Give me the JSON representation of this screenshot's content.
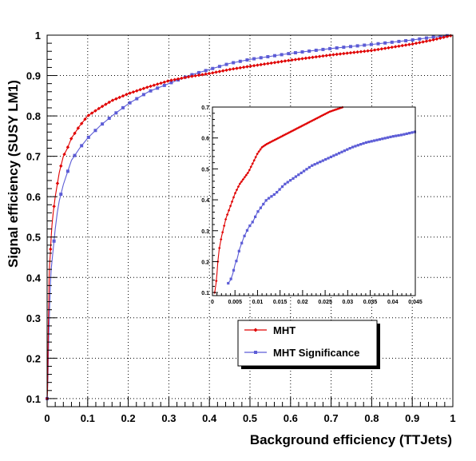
{
  "chart_data": {
    "type": "line",
    "xlabel": "Background efficiency (TTJets)",
    "ylabel": "Signal efficiency (SUSY LM1)",
    "xlim": [
      0,
      1
    ],
    "ylim": [
      0.08,
      1.0
    ],
    "x_ticks": [
      "0",
      "0.1",
      "0.2",
      "0.3",
      "0.4",
      "0.5",
      "0.6",
      "0.7",
      "0.8",
      "0.9",
      "1"
    ],
    "y_ticks": [
      "0.1",
      "0.2",
      "0.3",
      "0.4",
      "0.5",
      "0.6",
      "0.7",
      "0.8",
      "0.9",
      "1"
    ],
    "grid": true,
    "legend_position": "bottom-right",
    "series": [
      {
        "name": "MHT",
        "color": "#e00000",
        "marker": "diamond",
        "points": [
          [
            0.0,
            0.1
          ],
          [
            0.001,
            0.12
          ],
          [
            0.002,
            0.2
          ],
          [
            0.003,
            0.28
          ],
          [
            0.004,
            0.33
          ],
          [
            0.005,
            0.4
          ],
          [
            0.006,
            0.43
          ],
          [
            0.008,
            0.46
          ],
          [
            0.01,
            0.5
          ],
          [
            0.012,
            0.53
          ],
          [
            0.015,
            0.56
          ],
          [
            0.02,
            0.6
          ],
          [
            0.025,
            0.63
          ],
          [
            0.03,
            0.66
          ],
          [
            0.04,
            0.7
          ],
          [
            0.05,
            0.72
          ],
          [
            0.06,
            0.745
          ],
          [
            0.08,
            0.775
          ],
          [
            0.1,
            0.8
          ],
          [
            0.13,
            0.82
          ],
          [
            0.16,
            0.838
          ],
          [
            0.2,
            0.855
          ],
          [
            0.25,
            0.872
          ],
          [
            0.3,
            0.887
          ],
          [
            0.35,
            0.897
          ],
          [
            0.4,
            0.905
          ],
          [
            0.45,
            0.915
          ],
          [
            0.5,
            0.923
          ],
          [
            0.6,
            0.938
          ],
          [
            0.7,
            0.951
          ],
          [
            0.8,
            0.962
          ],
          [
            0.9,
            0.978
          ],
          [
            0.95,
            0.988
          ],
          [
            1.0,
            1.0
          ]
        ]
      },
      {
        "name": "MHT Significance",
        "color": "#5c5cd6",
        "marker": "square",
        "points": [
          [
            0.0,
            0.1
          ],
          [
            0.002,
            0.15
          ],
          [
            0.004,
            0.25
          ],
          [
            0.006,
            0.32
          ],
          [
            0.008,
            0.38
          ],
          [
            0.01,
            0.42
          ],
          [
            0.015,
            0.47
          ],
          [
            0.02,
            0.52
          ],
          [
            0.025,
            0.56
          ],
          [
            0.03,
            0.59
          ],
          [
            0.04,
            0.63
          ],
          [
            0.05,
            0.66
          ],
          [
            0.06,
            0.69
          ],
          [
            0.08,
            0.72
          ],
          [
            0.1,
            0.745
          ],
          [
            0.13,
            0.775
          ],
          [
            0.16,
            0.8
          ],
          [
            0.2,
            0.83
          ],
          [
            0.25,
            0.86
          ],
          [
            0.3,
            0.88
          ],
          [
            0.35,
            0.9
          ],
          [
            0.4,
            0.915
          ],
          [
            0.45,
            0.93
          ],
          [
            0.5,
            0.94
          ],
          [
            0.6,
            0.955
          ],
          [
            0.7,
            0.967
          ],
          [
            0.8,
            0.977
          ],
          [
            0.9,
            0.988
          ],
          [
            0.95,
            0.995
          ],
          [
            1.0,
            1.0
          ]
        ]
      }
    ],
    "inset": {
      "xlim": [
        0,
        0.045
      ],
      "ylim": [
        0.09,
        0.7
      ],
      "x_ticks": [
        "0",
        "0.005",
        "0.01",
        "0.015",
        "0.02",
        "0.025",
        "0.03",
        "0.035",
        "0.04",
        "0.045"
      ],
      "y_ticks": [
        "0.1",
        "0.2",
        "0.3",
        "0.4",
        "0.5",
        "0.6",
        "0.7"
      ],
      "series": [
        {
          "name": "MHT",
          "points": [
            [
              0.0005,
              0.1
            ],
            [
              0.0008,
              0.13
            ],
            [
              0.001,
              0.16
            ],
            [
              0.0012,
              0.2
            ],
            [
              0.0015,
              0.24
            ],
            [
              0.002,
              0.28
            ],
            [
              0.0025,
              0.31
            ],
            [
              0.003,
              0.34
            ],
            [
              0.004,
              0.38
            ],
            [
              0.005,
              0.42
            ],
            [
              0.006,
              0.45
            ],
            [
              0.007,
              0.47
            ],
            [
              0.008,
              0.49
            ],
            [
              0.009,
              0.52
            ],
            [
              0.01,
              0.55
            ],
            [
              0.011,
              0.57
            ],
            [
              0.012,
              0.58
            ],
            [
              0.014,
              0.595
            ],
            [
              0.016,
              0.61
            ],
            [
              0.018,
              0.625
            ],
            [
              0.02,
              0.64
            ],
            [
              0.022,
              0.655
            ],
            [
              0.024,
              0.67
            ],
            [
              0.026,
              0.685
            ],
            [
              0.028,
              0.695
            ],
            [
              0.029,
              0.7
            ]
          ]
        },
        {
          "name": "MHT Significance",
          "points": [
            [
              0.0035,
              0.13
            ],
            [
              0.004,
              0.14
            ],
            [
              0.0045,
              0.16
            ],
            [
              0.005,
              0.19
            ],
            [
              0.0055,
              0.21
            ],
            [
              0.006,
              0.24
            ],
            [
              0.007,
              0.28
            ],
            [
              0.008,
              0.31
            ],
            [
              0.009,
              0.33
            ],
            [
              0.01,
              0.36
            ],
            [
              0.011,
              0.38
            ],
            [
              0.012,
              0.4
            ],
            [
              0.014,
              0.42
            ],
            [
              0.016,
              0.45
            ],
            [
              0.018,
              0.47
            ],
            [
              0.02,
              0.49
            ],
            [
              0.022,
              0.51
            ],
            [
              0.025,
              0.53
            ],
            [
              0.028,
              0.55
            ],
            [
              0.031,
              0.57
            ],
            [
              0.034,
              0.585
            ],
            [
              0.037,
              0.595
            ],
            [
              0.04,
              0.605
            ],
            [
              0.042,
              0.61
            ],
            [
              0.045,
              0.62
            ]
          ]
        }
      ]
    }
  }
}
